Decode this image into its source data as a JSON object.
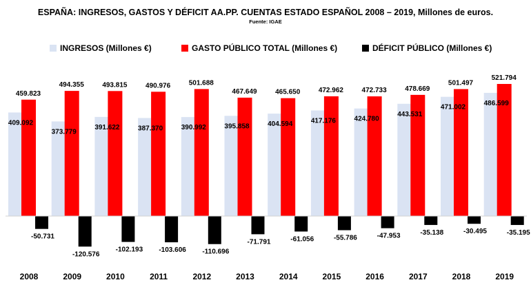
{
  "chart_data": {
    "type": "bar",
    "title": "ESPAÑA: INGRESOS, GASTOS Y DÉFICIT AA.PP. CUENTAS ESTADO ESPAÑOL 2008 – 2019, Millones de euros.",
    "subtitle": "Fuente: IGAE",
    "categories": [
      "2008",
      "2009",
      "2010",
      "2011",
      "2012",
      "2013",
      "2014",
      "2015",
      "2016",
      "2017",
      "2018",
      "2019"
    ],
    "series": [
      {
        "name": "INGRESOS (Millones €)",
        "color": "#dae3f3",
        "values": [
          409092,
          373779,
          391622,
          387370,
          390992,
          395858,
          404594,
          417176,
          424780,
          443531,
          471002,
          486599
        ],
        "labels": [
          "409.092",
          "373.779",
          "391.622",
          "387.370",
          "390.992",
          "395.858",
          "404.594",
          "417.176",
          "424.780",
          "443.531",
          "471.002",
          "486.599"
        ]
      },
      {
        "name": "GASTO PÚBLICO TOTAL (Millones €)",
        "color": "#ff0000",
        "values": [
          459823,
          494355,
          493815,
          490976,
          501688,
          467649,
          465650,
          472962,
          472733,
          478669,
          501497,
          521794
        ],
        "labels": [
          "459.823",
          "494.355",
          "493.815",
          "490.976",
          "501.688",
          "467.649",
          "465.650",
          "472.962",
          "472.733",
          "478.669",
          "501.497",
          "521.794"
        ]
      },
      {
        "name": "DÉFICIT PÚBLICO (Millones €)",
        "color": "#000000",
        "values": [
          -50731,
          -120576,
          -102193,
          -103606,
          -110696,
          -71791,
          -61056,
          -55786,
          -47953,
          -35138,
          -30495,
          -35195
        ],
        "labels": [
          "-50.731",
          "-120.576",
          "-102.193",
          "-103.606",
          "-110.696",
          "-71.791",
          "-61.056",
          "-55.786",
          "-47.953",
          "-35.138",
          "-30.495",
          "-35.195"
        ]
      }
    ],
    "legend_position": "top",
    "grid": false
  }
}
